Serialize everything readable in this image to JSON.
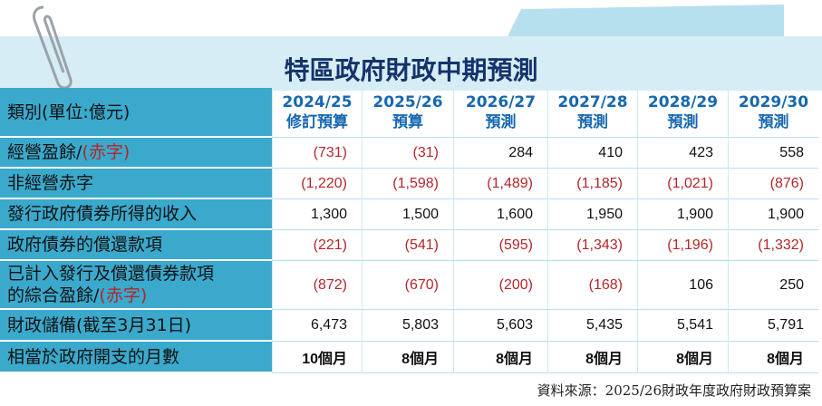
{
  "header": {
    "title": "特區政府財政中期預測"
  },
  "table": {
    "corner": "類別(單位:億元)",
    "columns": [
      {
        "year": "2024/25",
        "kind": "修訂預算"
      },
      {
        "year": "2025/26",
        "kind": "預算"
      },
      {
        "year": "2026/27",
        "kind": "預測"
      },
      {
        "year": "2027/28",
        "kind": "預測"
      },
      {
        "year": "2028/29",
        "kind": "預測"
      },
      {
        "year": "2029/30",
        "kind": "預測"
      }
    ],
    "rows": [
      {
        "label": [
          "經營盈餘/"
        ],
        "red": "(赤字)",
        "values": [
          "(731)",
          "(31)",
          "284",
          "410",
          "423",
          "558"
        ]
      },
      {
        "label": [
          "非經營赤字"
        ],
        "values": [
          "(1,220)",
          "(1,598)",
          "(1,489)",
          "(1,185)",
          "(1,021)",
          "(876)"
        ]
      },
      {
        "label": [
          "發行政府債券所得的收入"
        ],
        "values": [
          "1,300",
          "1,500",
          "1,600",
          "1,950",
          "1,900",
          "1,900"
        ]
      },
      {
        "label": [
          "政府債券的償還款項"
        ],
        "values": [
          "(221)",
          "(541)",
          "(595)",
          "(1,343)",
          "(1,196)",
          "(1,332)"
        ]
      },
      {
        "label": [
          "已計入發行及償還債券款項",
          "的綜合盈餘/"
        ],
        "red": "(赤字)",
        "values": [
          "(872)",
          "(670)",
          "(200)",
          "(168)",
          "106",
          "250"
        ]
      },
      {
        "label": [
          "財政儲備(截至3月31日)"
        ],
        "values": [
          "6,473",
          "5,803",
          "5,603",
          "5,435",
          "5,541",
          "5,791"
        ]
      },
      {
        "label": [
          "相當於政府開支的月數"
        ],
        "values": [
          "10個月",
          "8個月",
          "8個月",
          "8個月",
          "8個月",
          "8個月"
        ]
      }
    ]
  },
  "source": "資料來源：2025/26財政年度政府財政預算案"
}
